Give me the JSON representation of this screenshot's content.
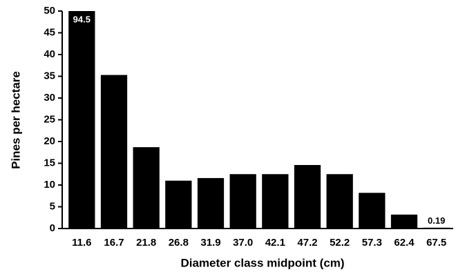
{
  "chart_data": {
    "type": "bar",
    "xlabel": "Diameter class midpoint (cm)",
    "ylabel": "Pines per hectare",
    "categories": [
      "11.6",
      "16.7",
      "21.8",
      "26.8",
      "31.9",
      "37.0",
      "42.1",
      "47.2",
      "52.2",
      "57.3",
      "62.4",
      "67.5"
    ],
    "values": [
      94.5,
      35.3,
      18.7,
      11.0,
      11.6,
      12.5,
      12.5,
      14.6,
      12.5,
      8.2,
      3.2,
      0.19
    ],
    "value_labels": [
      "94.5",
      null,
      null,
      null,
      null,
      null,
      null,
      null,
      null,
      null,
      null,
      "0.19"
    ],
    "color": "#000000",
    "ylim": [
      0,
      50
    ],
    "yticks": [
      0,
      5,
      10,
      15,
      20,
      25,
      30,
      35,
      40,
      45,
      50
    ],
    "grid": false
  }
}
